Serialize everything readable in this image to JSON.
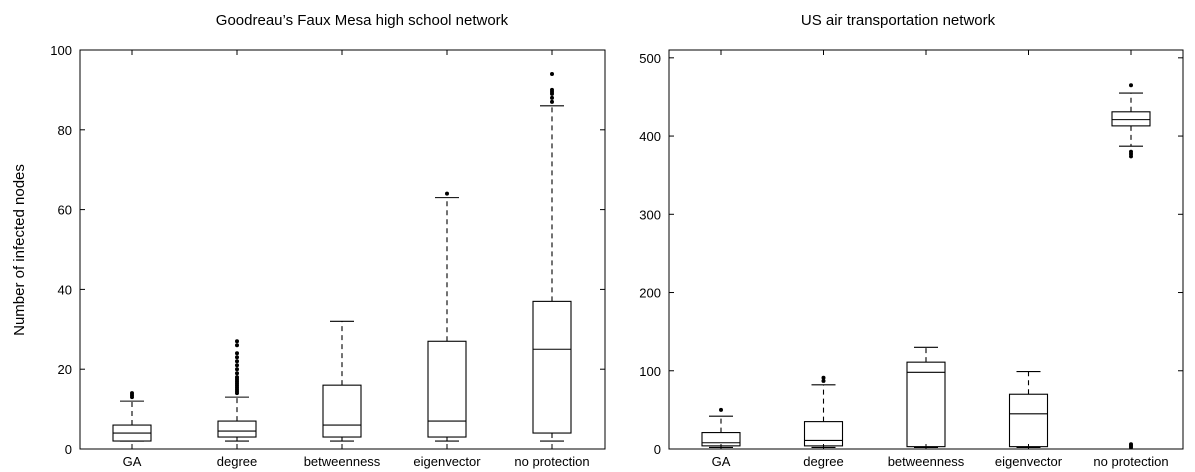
{
  "chart_data": [
    {
      "type": "box",
      "title": "Goodreau’s Faux Mesa high school network",
      "ylabel": "Number of infected nodes",
      "ylim": [
        0,
        100
      ],
      "yticks": [
        0,
        20,
        40,
        60,
        80,
        100
      ],
      "categories": [
        "GA",
        "degree",
        "betweenness",
        "eigenvector",
        "no protection"
      ],
      "boxes": [
        {
          "label": "GA",
          "whislo": 2,
          "q1": 2,
          "median": 4,
          "q3": 6,
          "whishi": 12,
          "fliers": [
            13,
            13.5,
            14
          ]
        },
        {
          "label": "degree",
          "whislo": 2,
          "q1": 3,
          "median": 4.5,
          "q3": 7,
          "whishi": 13,
          "fliers": [
            14,
            14.5,
            15,
            15.5,
            16,
            16.5,
            17,
            17.5,
            18,
            19,
            20,
            21,
            22,
            23,
            24,
            26,
            27
          ]
        },
        {
          "label": "betweenness",
          "whislo": 2,
          "q1": 3,
          "median": 6,
          "q3": 16,
          "whishi": 32,
          "fliers": []
        },
        {
          "label": "eigenvector",
          "whislo": 2,
          "q1": 3,
          "median": 7,
          "q3": 27,
          "whishi": 63,
          "fliers": [
            64
          ]
        },
        {
          "label": "no protection",
          "whislo": 2,
          "q1": 4,
          "median": 25,
          "q3": 37,
          "whishi": 86,
          "fliers": [
            87,
            88,
            89,
            89.5,
            90,
            94
          ]
        }
      ]
    },
    {
      "type": "box",
      "title": "US air transportation network",
      "ylabel": "",
      "ylim": [
        0,
        510
      ],
      "yticks": [
        0,
        100,
        200,
        300,
        400,
        500
      ],
      "categories": [
        "GA",
        "degree",
        "betweenness",
        "eigenvector",
        "no protection"
      ],
      "boxes": [
        {
          "label": "GA",
          "whislo": 2,
          "q1": 4,
          "median": 8,
          "q3": 21,
          "whishi": 42,
          "fliers": [
            50
          ]
        },
        {
          "label": "degree",
          "whislo": 2,
          "q1": 4,
          "median": 11,
          "q3": 35,
          "whishi": 82,
          "fliers": [
            87,
            91
          ]
        },
        {
          "label": "betweenness",
          "whislo": 2,
          "q1": 3,
          "median": 98,
          "q3": 111,
          "whishi": 130,
          "fliers": []
        },
        {
          "label": "eigenvector",
          "whislo": 2,
          "q1": 3,
          "median": 45,
          "q3": 70,
          "whishi": 99,
          "fliers": []
        },
        {
          "label": "no protection",
          "whislo": 387,
          "q1": 413,
          "median": 421,
          "q3": 431,
          "whishi": 455,
          "fliers": [
            374,
            377,
            380,
            465,
            2,
            4,
            6
          ]
        }
      ]
    }
  ]
}
